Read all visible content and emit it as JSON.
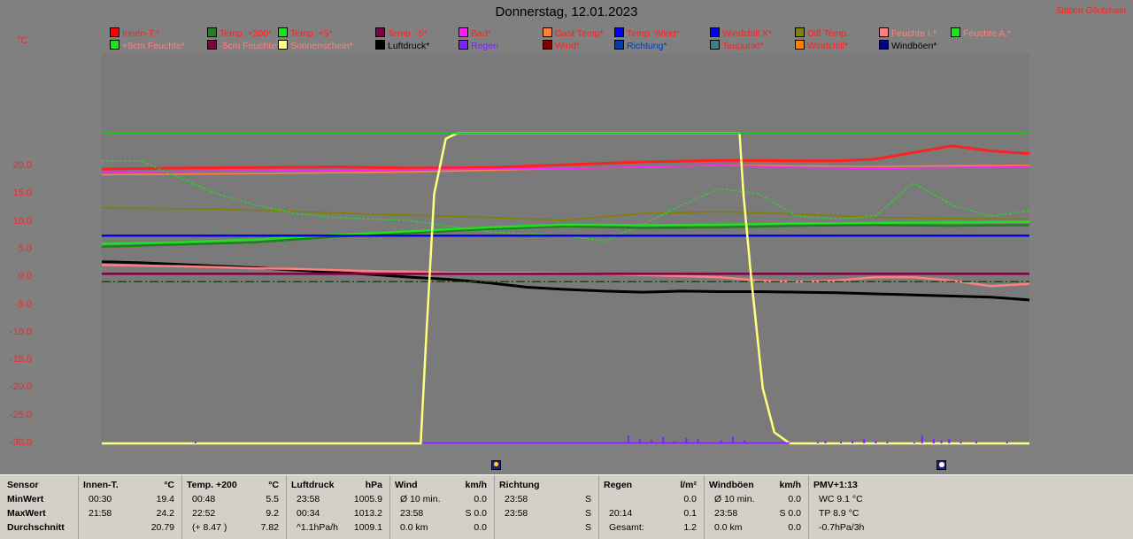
{
  "title": "Donnerstag, 12.01.2023",
  "station": "Station Göritzhain",
  "unit_label": "°C",
  "legend": [
    {
      "label": "Innen-T.*",
      "color": "#ff2020",
      "text_color": "#ff2020",
      "swatch": "#ff0000"
    },
    {
      "label": "Temp. +200*",
      "color": "#208020",
      "text_color": "#ff2020",
      "swatch": "#208020"
    },
    {
      "label": "Temp. +5*",
      "color": "#20e020",
      "text_color": "#ff2020",
      "swatch": "#20e020"
    },
    {
      "label": "Temp. -5*",
      "color": "#800040",
      "text_color": "#ff2020",
      "swatch": "#800040"
    },
    {
      "label": "Bad*",
      "color": "#ff20ff",
      "text_color": "#ff2020",
      "swatch": "#ff20ff"
    },
    {
      "label": "Gast Temp*",
      "color": "#ff8040",
      "text_color": "#ff2020",
      "swatch": "#ff8040"
    },
    {
      "label": "Temp. Wind*",
      "color": "#0000ff",
      "text_color": "#ff2020",
      "swatch": "#0000ff"
    },
    {
      "label": "Windchill X*",
      "color": "#0000ff",
      "text_color": "#ff2020",
      "swatch": "#0000ff"
    },
    {
      "label": "Diff Temp.",
      "color": "#808000",
      "text_color": "#ff2020",
      "swatch": "#808000"
    },
    {
      "label": "Feuchte I.*",
      "color": "#ff8080",
      "text_color": "#ff8080",
      "swatch": "#ff8080"
    },
    {
      "label": "Feuchte A.*",
      "color": "#20e020",
      "text_color": "#ff8080",
      "swatch": "#20e020"
    },
    {
      "label": "+5cm Feuchte*",
      "color": "#20e020",
      "text_color": "#ff8080",
      "swatch": "#20e020"
    },
    {
      "label": "-5cm Feuchte*",
      "color": "#800040",
      "text_color": "#ff8080",
      "swatch": "#800040"
    },
    {
      "label": "Sonnenschein*",
      "color": "#ffff80",
      "text_color": "#ff8080",
      "swatch": "#ffff80"
    },
    {
      "label": "Luftdruck*",
      "color": "#000000",
      "text_color": "#000000",
      "swatch": "#000000"
    },
    {
      "label": "Regen",
      "color": "#8020ff",
      "text_color": "#8020ff",
      "swatch": "#8020ff"
    },
    {
      "label": "Wind*",
      "color": "#800000",
      "text_color": "#ff2020",
      "swatch": "#800000"
    },
    {
      "label": "Richtung*",
      "color": "#0040a0",
      "text_color": "#0040a0",
      "swatch": "#0040a0"
    },
    {
      "label": "Taupunkt*",
      "color": "#408080",
      "text_color": "#ff2020",
      "swatch": "#408080"
    },
    {
      "label": "Windchill*",
      "color": "#ff8000",
      "text_color": "#ff2020",
      "swatch": "#ff8000"
    },
    {
      "label": "Windböen*",
      "color": "#000080",
      "text_color": "#000000",
      "swatch": "#000080"
    }
  ],
  "chart_data": {
    "type": "line",
    "x_unit": "hour",
    "xlim": [
      0,
      24
    ],
    "ylim": [
      -30,
      25
    ],
    "y_ticks": [
      "20.0",
      "15.0",
      "10.0",
      "5.0",
      "0.0",
      "-5.0",
      "-10.0",
      "-15.0",
      "-20.0",
      "-25.0",
      "-30.0"
    ],
    "y_tick_values": [
      20,
      15,
      10,
      5,
      0,
      -5,
      -10,
      -15,
      -20,
      -25,
      -30
    ],
    "series": [
      {
        "name": "Innen-T.*",
        "color": "#ff2020",
        "x": [
          0,
          2,
          4,
          6,
          8,
          10,
          12,
          14,
          16,
          18,
          19,
          20,
          21,
          22,
          23,
          24
        ],
        "y": [
          19.5,
          19.7,
          19.8,
          19.9,
          19.7,
          19.8,
          20.3,
          20.8,
          21.1,
          21.0,
          21.0,
          21.3,
          22.5,
          23.7,
          22.8,
          22.3
        ]
      },
      {
        "name": "Gast Temp*",
        "color": "#ff8040",
        "x": [
          0,
          4,
          8,
          12,
          16,
          20,
          24
        ],
        "y": [
          18.5,
          18.7,
          19.0,
          19.6,
          20.2,
          20.0,
          20.2
        ]
      },
      {
        "name": "Bad*",
        "color": "#ff20ff",
        "x": [
          0,
          4,
          8,
          12,
          16,
          18,
          20,
          24
        ],
        "y": [
          19.0,
          19.2,
          19.4,
          19.6,
          20.2,
          19.8,
          19.6,
          20.0
        ]
      },
      {
        "name": "Diff Temp.",
        "color": "#808000",
        "x": [
          0,
          3,
          6,
          9,
          12,
          14,
          16,
          18,
          20,
          22,
          24
        ],
        "y": [
          12.5,
          12.3,
          11.6,
          11.0,
          10.3,
          11.5,
          11.8,
          11.4,
          10.8,
          10.6,
          10.5
        ]
      },
      {
        "name": "Feuchte A.*",
        "color": "#20e020",
        "dashed": true,
        "x": [
          0,
          1,
          2,
          3,
          4,
          5,
          6,
          8,
          10,
          12,
          13,
          14,
          15,
          16,
          17,
          18,
          19,
          20,
          21,
          22,
          23,
          24
        ],
        "y": [
          21.0,
          21.0,
          18.0,
          15.0,
          13.0,
          11.5,
          10.8,
          10.2,
          8.2,
          7.5,
          6.5,
          9.5,
          13.0,
          16.0,
          15.0,
          11.0,
          10.5,
          11.0,
          17.0,
          13.0,
          11.0,
          12.0
        ]
      },
      {
        "name": "Temp. +200*",
        "color": "#208020",
        "x": [
          0,
          2,
          4,
          6,
          8,
          10,
          12,
          14,
          16,
          18,
          20,
          22,
          24
        ],
        "y": [
          5.5,
          5.9,
          6.3,
          7.3,
          8.0,
          8.7,
          9.2,
          8.9,
          9.0,
          9.3,
          9.4,
          9.3,
          9.4
        ]
      },
      {
        "name": "Temp. +5*",
        "color": "#20e020",
        "x": [
          0,
          2,
          4,
          6,
          8,
          10,
          12,
          14,
          16,
          18,
          20,
          22,
          24
        ],
        "y": [
          6.0,
          6.3,
          6.8,
          7.6,
          8.3,
          9.0,
          9.5,
          9.4,
          9.5,
          9.7,
          9.8,
          9.9,
          10.0
        ]
      },
      {
        "name": "Temp. Wind*",
        "color": "#0000ff",
        "x": [
          0,
          24
        ],
        "y": [
          7.5,
          7.5
        ]
      },
      {
        "name": "Luftdruck*",
        "color": "#000000",
        "x": [
          0,
          1,
          2,
          3,
          4,
          5,
          6,
          7,
          8,
          9,
          10,
          11,
          12,
          13,
          14,
          15,
          16,
          17,
          18,
          19,
          20,
          21,
          22,
          23,
          24
        ],
        "y": [
          2.8,
          2.6,
          2.3,
          2.0,
          1.7,
          1.3,
          0.9,
          0.5,
          0.0,
          -0.4,
          -1.0,
          -1.8,
          -2.2,
          -2.5,
          -2.7,
          -2.5,
          -2.6,
          -2.6,
          -2.7,
          -2.8,
          -3.0,
          -3.2,
          -3.4,
          -3.6,
          -4.1
        ]
      },
      {
        "name": "Feuchte I.*",
        "color": "#ff8080",
        "x": [
          0,
          2,
          3,
          4,
          5,
          6,
          7,
          8,
          9,
          10,
          11,
          12,
          13,
          14,
          15,
          16,
          17,
          18,
          19,
          20,
          21,
          22,
          23,
          24
        ],
        "y": [
          2.2,
          2.0,
          1.8,
          1.6,
          1.5,
          1.3,
          1.1,
          1.0,
          0.8,
          0.8,
          0.8,
          0.7,
          0.6,
          0.4,
          0.2,
          0.0,
          -0.6,
          -0.8,
          -0.6,
          0.0,
          0.0,
          -0.6,
          -1.6,
          -1.2
        ]
      },
      {
        "name": "-5cm Feuchte*",
        "color": "#800040",
        "x": [
          0,
          24
        ],
        "y": [
          0.6,
          0.6
        ]
      },
      {
        "name": "Taupunkt*",
        "color": "#408080",
        "dashed": true,
        "x": [
          0,
          24
        ],
        "y": [
          -0.8,
          -0.8
        ]
      },
      {
        "name": "Sonnenschein*",
        "color": "#ffff80",
        "x": [
          0,
          8.25,
          8.4,
          8.6,
          8.9,
          9.2,
          16.5,
          16.6,
          16.8,
          17.1,
          17.4,
          17.8,
          24
        ],
        "y": [
          -30,
          -30,
          -10,
          15,
          25,
          26,
          26,
          15,
          0,
          -20,
          -28,
          -30,
          -30
        ]
      },
      {
        "name": "Feuchte A. line",
        "color": "#20c020",
        "x": [
          0,
          24
        ],
        "y": [
          26,
          26
        ]
      }
    ],
    "rain_bars_x": [
      2.4,
      8.7,
      9.0,
      9.6,
      10.2,
      12.8,
      13.6,
      13.9,
      14.2,
      14.5,
      14.8,
      15.1,
      15.4,
      16.0,
      16.3,
      16.6,
      18.5,
      18.7,
      19.1,
      19.4,
      19.7,
      20.0,
      20.3,
      21.0,
      21.2,
      21.5,
      21.7,
      21.9,
      22.2,
      22.6,
      23.4
    ],
    "rain_bars_h": [
      0.3,
      0.2,
      0.2,
      0.2,
      0.2,
      0.2,
      1.5,
      0.8,
      0.6,
      1.2,
      0.4,
      1.0,
      0.8,
      0.6,
      1.2,
      0.6,
      0.3,
      0.4,
      0.3,
      0.6,
      0.8,
      0.5,
      0.3,
      0.2,
      1.6,
      0.8,
      0.6,
      0.8,
      0.3,
      0.4,
      0.3
    ]
  },
  "markers": [
    {
      "name": "sunrise-marker",
      "hour": 10.2,
      "kind": "sun"
    },
    {
      "name": "moon-marker",
      "hour": 21.7,
      "kind": "moon"
    }
  ],
  "stats": {
    "row_labels": [
      "Sensor",
      "MinWert",
      "MaxWert",
      "Durchschnitt"
    ],
    "columns": [
      {
        "name": "Innen-T.",
        "unit": "°C",
        "rows": [
          [
            "00:30",
            "19.4"
          ],
          [
            "21:58",
            "24.2"
          ],
          [
            "",
            "20.79"
          ]
        ]
      },
      {
        "name": "Temp. +200",
        "unit": "°C",
        "rows": [
          [
            "00:48",
            "5.5"
          ],
          [
            "22:52",
            "9.2"
          ],
          [
            "(+ 8.47 )",
            "7.82"
          ]
        ]
      },
      {
        "name": "Luftdruck",
        "unit": "hPa",
        "rows": [
          [
            "23:58",
            "1005.9"
          ],
          [
            "00:34",
            "1013.2"
          ],
          [
            "^1.1hPa/h",
            "1009.1"
          ]
        ]
      },
      {
        "name": "Wind",
        "unit": "km/h",
        "rows": [
          [
            "Ø 10 min.",
            "0.0"
          ],
          [
            "23:58",
            "S 0.0"
          ],
          [
            "0.0 km",
            "0.0"
          ]
        ]
      },
      {
        "name": "Richtung",
        "unit": "",
        "rows": [
          [
            "23:58",
            "S"
          ],
          [
            "23:58",
            "S"
          ],
          [
            "",
            "S"
          ]
        ]
      },
      {
        "name": "Regen",
        "unit": "l/m²",
        "rows": [
          [
            "",
            "0.0"
          ],
          [
            "20:14",
            "0.1"
          ],
          [
            "Gesamt:",
            "1.2"
          ]
        ]
      },
      {
        "name": "Windböen",
        "unit": "km/h",
        "rows": [
          [
            "Ø 10 min.",
            "0.0"
          ],
          [
            "23:58",
            "S 0.0"
          ],
          [
            "0.0 km",
            "0.0"
          ]
        ]
      },
      {
        "name": "PMV+1:13",
        "unit": "",
        "rows": [
          [
            "WC 9.1 °C",
            ""
          ],
          [
            "TP 8.9 °C",
            ""
          ],
          [
            "-0.7hPa/3h",
            ""
          ]
        ]
      }
    ]
  }
}
